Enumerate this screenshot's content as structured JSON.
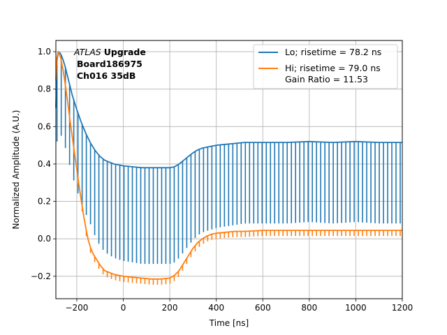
{
  "chart_data": {
    "type": "line",
    "title": "",
    "xlabel": "Time [ns]",
    "ylabel": "Normalized Amplitude (A.U.)",
    "xlim": [
      -290,
      1200
    ],
    "ylim": [
      -0.32,
      1.06
    ],
    "xticks": [
      -200,
      0,
      200,
      400,
      600,
      800,
      1000,
      1200
    ],
    "xtick_labels": [
      "−200",
      "0",
      "200",
      "400",
      "600",
      "800",
      "1000",
      "1200"
    ],
    "yticks": [
      -0.2,
      0.0,
      0.2,
      0.4,
      0.6,
      0.8,
      1.0
    ],
    "ytick_labels": [
      "−0.2",
      "0.0",
      "0.2",
      "0.4",
      "0.6",
      "0.8",
      "1.0"
    ],
    "grid": true,
    "legend_position": "top-right",
    "annotation": {
      "atlas": "ATLAS",
      "line1": "Upgrade",
      "line2": "Board186975",
      "line3": "Ch016 35dB"
    },
    "series": [
      {
        "name": "Lo; risetime = 78.2 ns",
        "color": "#1f77b4",
        "x": [
          -290,
          -285,
          -280,
          -270,
          -260,
          -250,
          -240,
          -230,
          -220,
          -200,
          -180,
          -160,
          -140,
          -120,
          -100,
          -80,
          -60,
          -40,
          -20,
          0,
          40,
          80,
          120,
          160,
          200,
          220,
          240,
          260,
          280,
          300,
          320,
          340,
          360,
          380,
          400,
          440,
          480,
          520,
          560,
          600,
          700,
          800,
          900,
          1000,
          1100,
          1200
        ],
        "y": [
          0.7,
          0.95,
          1.0,
          0.99,
          0.96,
          0.92,
          0.87,
          0.82,
          0.77,
          0.69,
          0.62,
          0.56,
          0.51,
          0.47,
          0.44,
          0.42,
          0.41,
          0.4,
          0.395,
          0.39,
          0.385,
          0.38,
          0.38,
          0.38,
          0.38,
          0.385,
          0.4,
          0.42,
          0.44,
          0.46,
          0.475,
          0.485,
          0.49,
          0.495,
          0.5,
          0.505,
          0.51,
          0.515,
          0.515,
          0.515,
          0.515,
          0.52,
          0.515,
          0.52,
          0.515,
          0.515
        ],
        "spike_interval": 18,
        "spike_x_start": -285,
        "spike_depth": -0.13
      },
      {
        "name": "Hi; risetime = 79.0 ns\n Gain Ratio = 11.53",
        "color": "#ff7f0e",
        "x": [
          -290,
          -285,
          -280,
          -270,
          -260,
          -250,
          -240,
          -230,
          -220,
          -210,
          -200,
          -190,
          -180,
          -170,
          -160,
          -150,
          -140,
          -130,
          -120,
          -110,
          -100,
          -80,
          -60,
          -40,
          -20,
          0,
          40,
          80,
          120,
          160,
          200,
          220,
          240,
          260,
          280,
          300,
          320,
          340,
          360,
          380,
          400,
          440,
          480,
          520,
          600,
          700,
          800,
          900,
          1000,
          1100,
          1200
        ],
        "y": [
          0.85,
          0.97,
          1.0,
          0.97,
          0.91,
          0.83,
          0.74,
          0.64,
          0.55,
          0.46,
          0.37,
          0.28,
          0.2,
          0.12,
          0.05,
          -0.01,
          -0.05,
          -0.08,
          -0.1,
          -0.12,
          -0.14,
          -0.17,
          -0.18,
          -0.19,
          -0.195,
          -0.2,
          -0.205,
          -0.21,
          -0.215,
          -0.215,
          -0.21,
          -0.195,
          -0.17,
          -0.13,
          -0.09,
          -0.05,
          -0.02,
          0.0,
          0.015,
          0.025,
          0.03,
          0.035,
          0.04,
          0.04,
          0.045,
          0.045,
          0.045,
          0.045,
          0.045,
          0.045,
          0.045
        ],
        "spike_interval": 18,
        "spike_x_start": -285,
        "spike_depth": -0.03
      }
    ]
  }
}
